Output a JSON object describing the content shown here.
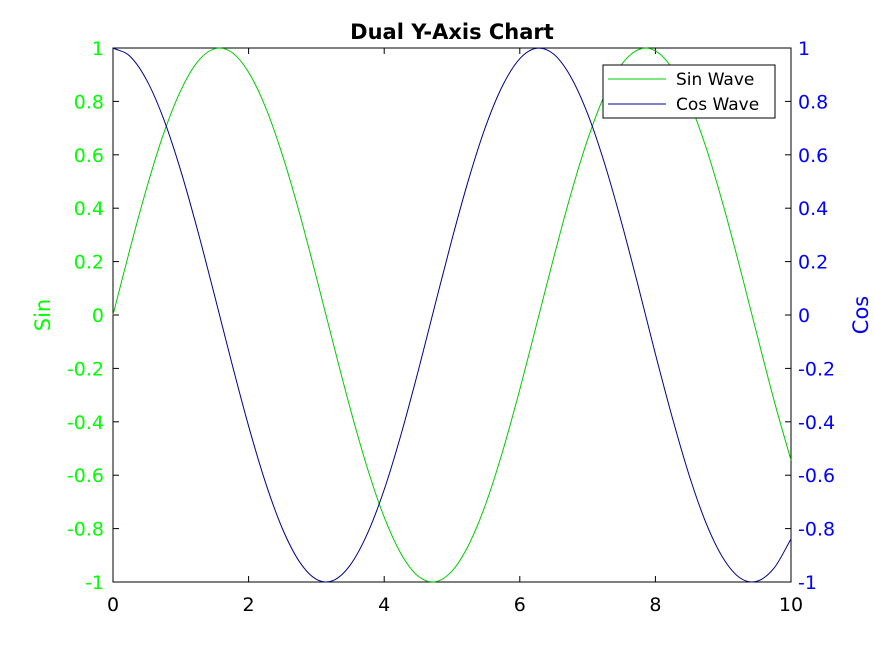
{
  "chart_data": {
    "type": "line",
    "title": "Dual Y-Axis Chart",
    "xlim": [
      0,
      10
    ],
    "x_ticks": [
      "0",
      "2",
      "4",
      "6",
      "8",
      "10"
    ],
    "y_left": {
      "label": "Sin",
      "color": "#00ff00",
      "ylim": [
        -1,
        1
      ],
      "ticks": [
        "1",
        "0.8",
        "0.6",
        "0.4",
        "0.2",
        "0",
        "-0.2",
        "-0.4",
        "-0.6",
        "-0.8",
        "-1"
      ]
    },
    "y_right": {
      "label": "Cos",
      "color": "#0000ff",
      "ylim": [
        -1,
        1
      ],
      "ticks": [
        "1",
        "0.8",
        "0.6",
        "0.4",
        "0.2",
        "0",
        "-0.2",
        "-0.4",
        "-0.6",
        "-0.8",
        "-1"
      ]
    },
    "legend_position": "top-right",
    "grid": false,
    "series": [
      {
        "name": "Sin Wave",
        "axis": "left",
        "color": "#00cc00",
        "x": [
          0,
          0.25,
          0.5,
          0.75,
          1,
          1.25,
          1.5,
          1.75,
          2,
          2.25,
          2.5,
          2.75,
          3,
          3.25,
          3.5,
          3.75,
          4,
          4.25,
          4.5,
          4.75,
          5,
          5.25,
          5.5,
          5.75,
          6,
          6.25,
          6.5,
          6.75,
          7,
          7.25,
          7.5,
          7.75,
          8,
          8.25,
          8.5,
          8.75,
          9,
          9.25,
          9.5,
          9.75,
          10
        ],
        "y": [
          0,
          0.247,
          0.479,
          0.682,
          0.841,
          0.949,
          0.997,
          0.984,
          0.909,
          0.778,
          0.598,
          0.382,
          0.141,
          -0.108,
          -0.351,
          -0.572,
          -0.757,
          -0.895,
          -0.978,
          -0.999,
          -0.959,
          -0.859,
          -0.706,
          -0.508,
          -0.279,
          -0.033,
          0.215,
          0.45,
          0.657,
          0.823,
          0.938,
          0.994,
          0.989,
          0.923,
          0.798,
          0.625,
          0.412,
          0.174,
          -0.075,
          -0.32,
          -0.544
        ]
      },
      {
        "name": "Cos Wave",
        "axis": "right",
        "color": "#00008b",
        "x": [
          0,
          0.25,
          0.5,
          0.75,
          1,
          1.25,
          1.5,
          1.75,
          2,
          2.25,
          2.5,
          2.75,
          3,
          3.25,
          3.5,
          3.75,
          4,
          4.25,
          4.5,
          4.75,
          5,
          5.25,
          5.5,
          5.75,
          6,
          6.25,
          6.5,
          6.75,
          7,
          7.25,
          7.5,
          7.75,
          8,
          8.25,
          8.5,
          8.75,
          9,
          9.25,
          9.5,
          9.75,
          10
        ],
        "y": [
          1,
          0.969,
          0.878,
          0.732,
          0.54,
          0.315,
          0.071,
          -0.178,
          -0.416,
          -0.628,
          -0.801,
          -0.924,
          -0.99,
          -0.994,
          -0.936,
          -0.82,
          -0.654,
          -0.446,
          -0.211,
          0.038,
          0.284,
          0.512,
          0.709,
          0.861,
          0.96,
          0.999,
          0.977,
          0.893,
          0.754,
          0.568,
          0.347,
          0.105,
          -0.146,
          -0.385,
          -0.602,
          -0.781,
          -0.911,
          -0.985,
          -0.997,
          -0.948,
          -0.839
        ]
      }
    ]
  }
}
